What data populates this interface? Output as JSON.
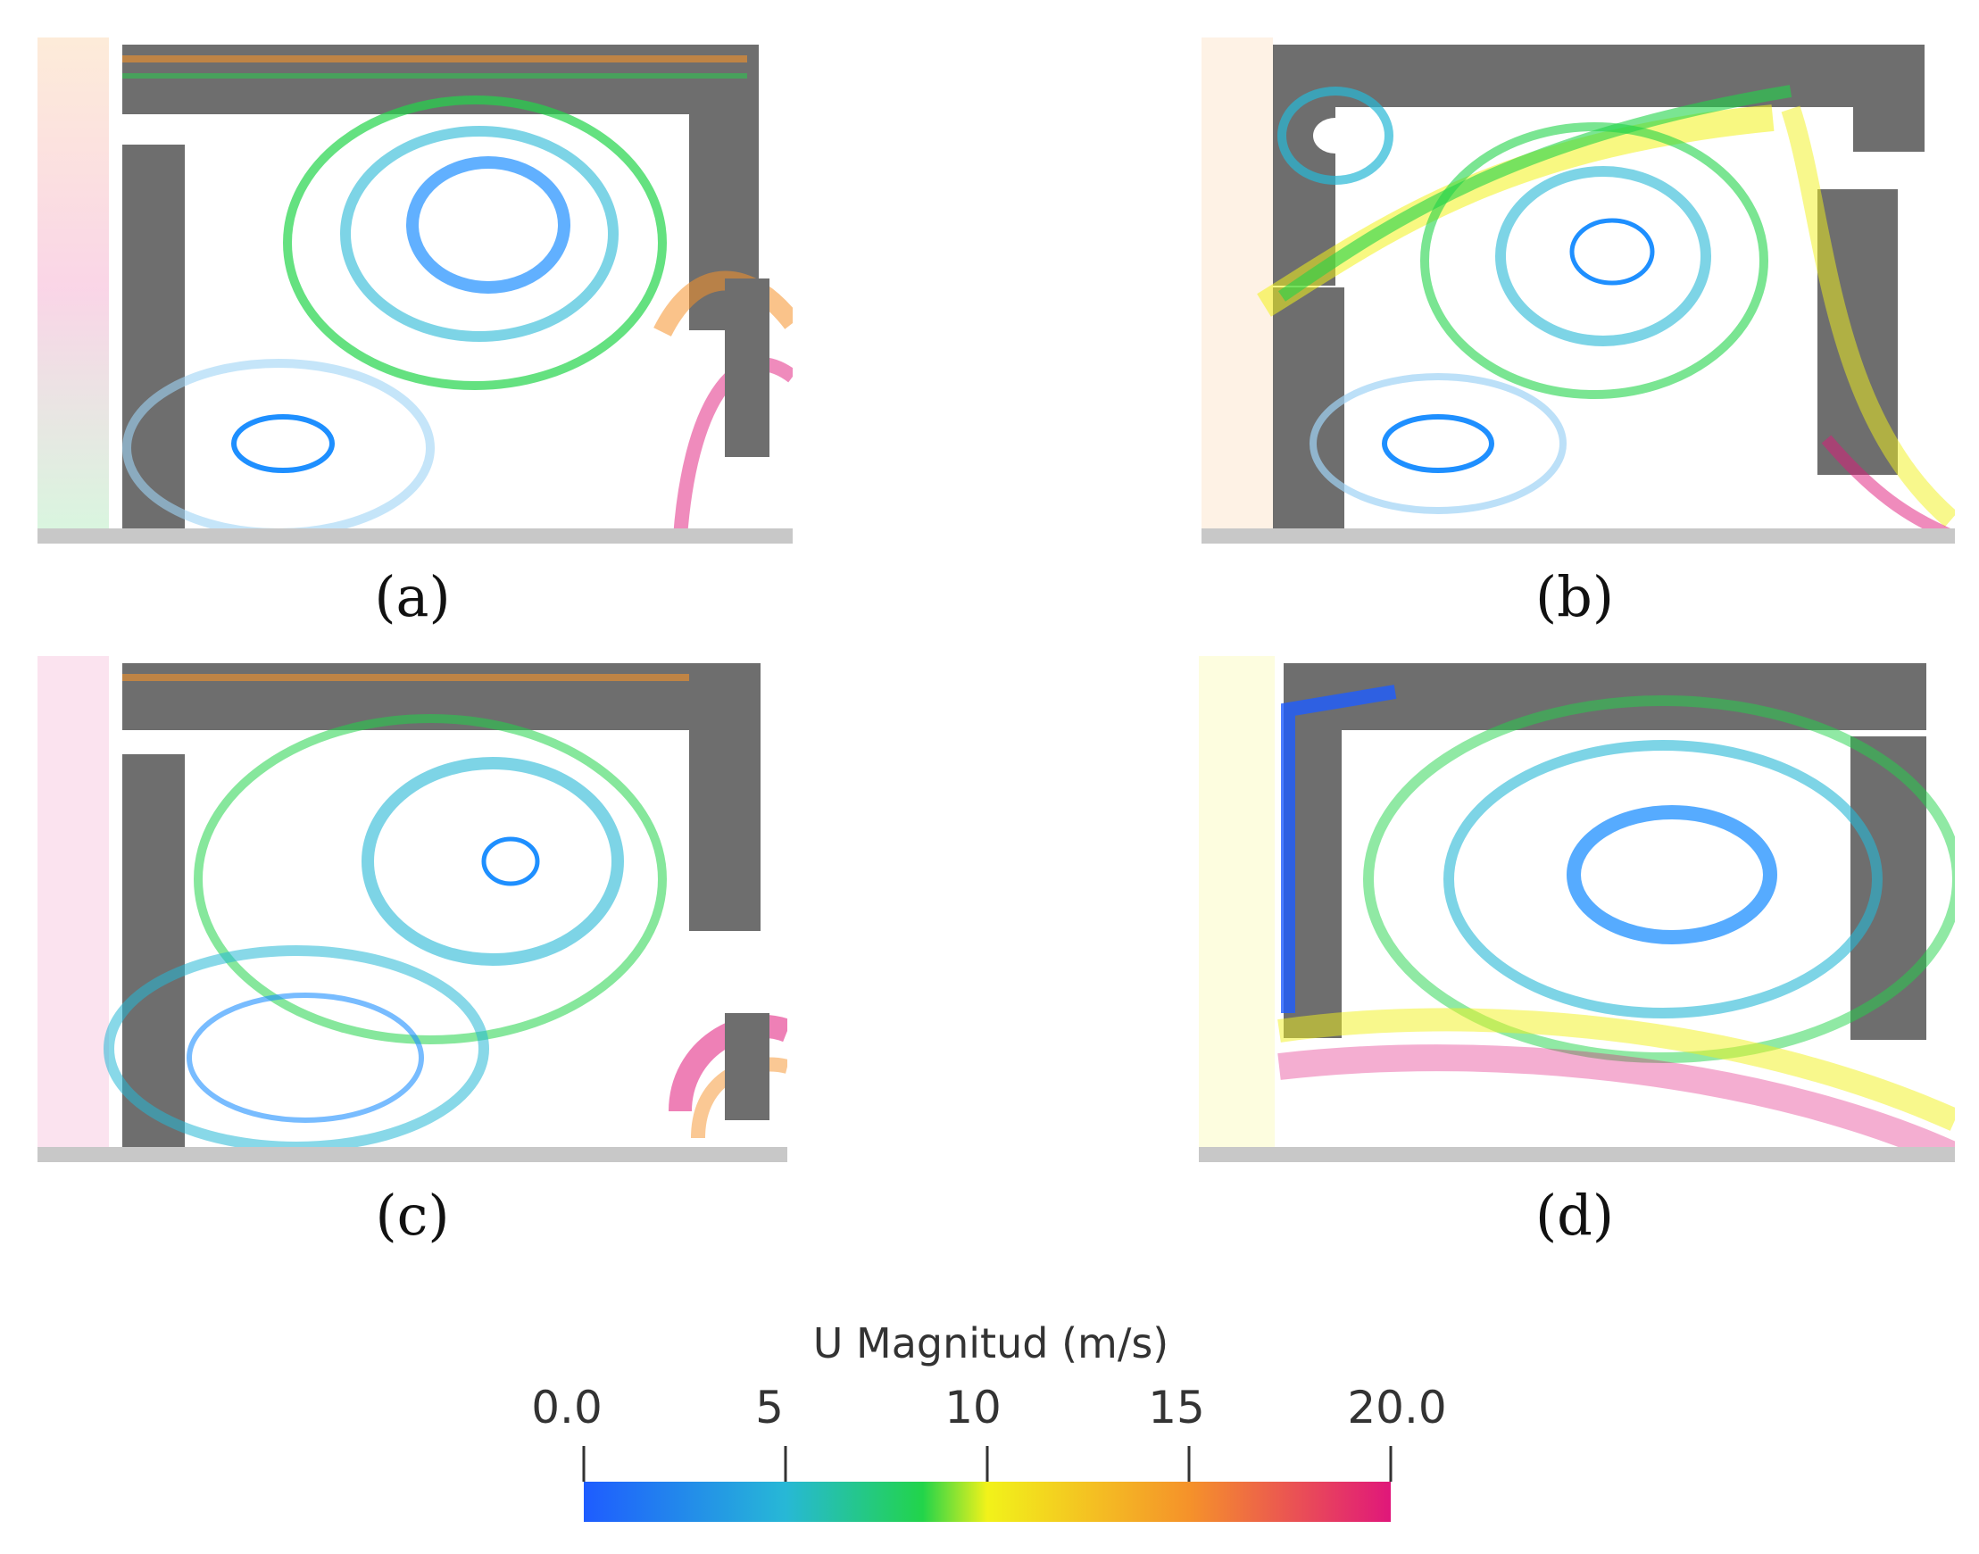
{
  "panels": [
    {
      "id": "a",
      "caption": "(a)"
    },
    {
      "id": "b",
      "caption": "(b)"
    },
    {
      "id": "c",
      "caption": "(c)"
    },
    {
      "id": "d",
      "caption": "(d)"
    }
  ],
  "legend": {
    "title": "U Magnitud (m/s)",
    "ticks": [
      "0.0",
      "5",
      "10",
      "15",
      "20.0"
    ],
    "range": [
      0,
      20
    ]
  },
  "colors": {
    "c0": "#1e5cff",
    "c5": "#27b8d6",
    "c8": "#22d44a",
    "c10": "#f2f21a",
    "c15": "#f5922a",
    "c20": "#e0177a",
    "wall": "#6e6e6e"
  },
  "icons": [
    "streamline-image",
    "velocity-vector-arrows",
    "colorbar"
  ]
}
